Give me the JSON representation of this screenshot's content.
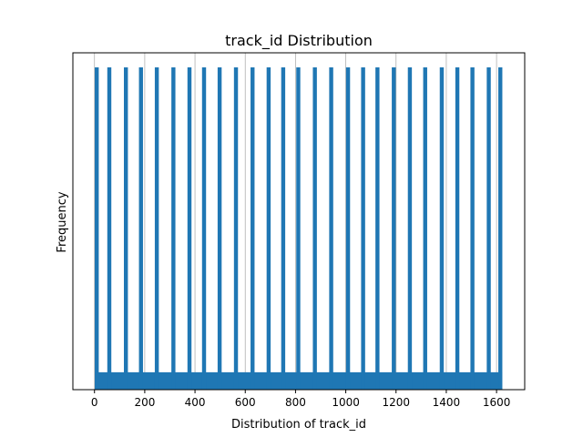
{
  "chart_data": {
    "type": "bar",
    "title": "track_id Distribution",
    "xlabel": "Distribution of track_id",
    "ylabel": "Frequency",
    "xlim": [
      -86,
      1712
    ],
    "x_ticks": [
      0,
      200,
      400,
      600,
      800,
      1000,
      1200,
      1400,
      1600
    ],
    "y_ticks_visible": false,
    "grid": "vertical",
    "bar_color": "#1f77b4",
    "baseline_band": {
      "x_start": 1,
      "x_end": 1622,
      "relative_height": 0.054
    },
    "spikes": {
      "relative_height": 1.0,
      "bin_width": 16,
      "x_starts": [
        1,
        51,
        117,
        177,
        240,
        306,
        370,
        428,
        490,
        555,
        621,
        685,
        743,
        803,
        869,
        934,
        1001,
        1061,
        1118,
        1183,
        1247,
        1308,
        1374,
        1436,
        1496,
        1561,
        1607
      ]
    }
  }
}
